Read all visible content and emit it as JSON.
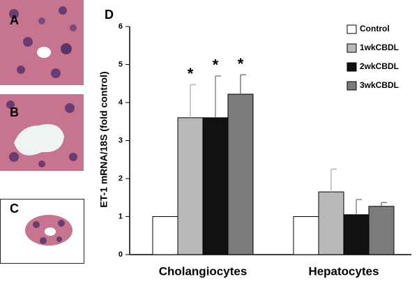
{
  "panels": [
    "A",
    "B",
    "C"
  ],
  "chart_data": {
    "type": "bar",
    "panel": "D",
    "ylabel": "ET-1 mRNA/18S (fold control)",
    "categories": [
      "Cholangiocytes",
      "Hepatocytes"
    ],
    "series": [
      {
        "name": "Control",
        "color": "#ffffff",
        "values": [
          1.0,
          1.0
        ],
        "errors": [
          null,
          null
        ]
      },
      {
        "name": "1wkCBDL",
        "color": "#b9b9b9",
        "values": [
          3.6,
          1.65
        ],
        "errors": [
          0.87,
          0.6
        ]
      },
      {
        "name": "2wkCBDL",
        "color": "#111111",
        "values": [
          3.6,
          1.05
        ],
        "errors": [
          1.1,
          0.4
        ]
      },
      {
        "name": "3wkCBDL",
        "color": "#7b7b7b",
        "values": [
          4.22,
          1.27
        ],
        "errors": [
          0.51,
          0.1
        ]
      }
    ],
    "annotations": [
      {
        "text": "*",
        "series": 1,
        "category": 0
      },
      {
        "text": "*",
        "series": 2,
        "category": 0
      },
      {
        "text": "*",
        "series": 3,
        "category": 0
      }
    ],
    "ylim": [
      0,
      6
    ],
    "yticks": [
      0,
      1,
      2,
      3,
      4,
      5,
      6
    ],
    "grid": false,
    "legend": "upper right"
  }
}
